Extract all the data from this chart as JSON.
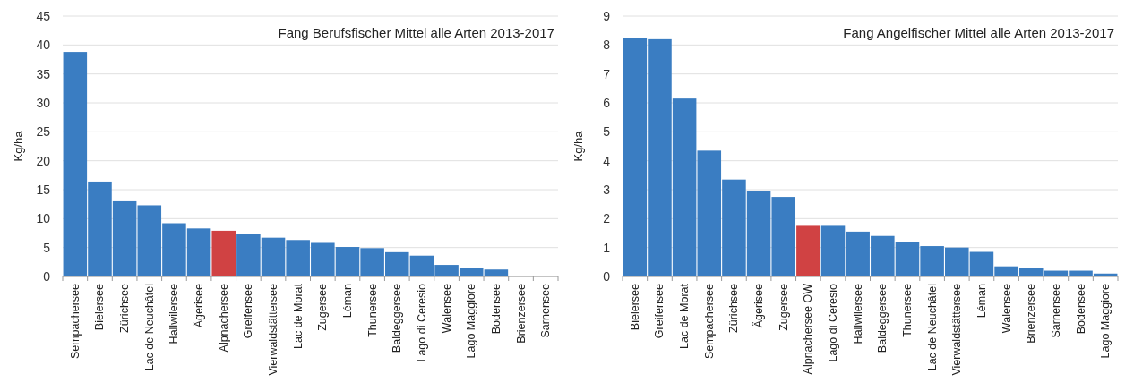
{
  "chart_data": [
    {
      "type": "bar",
      "title": "Fang Berufsfischer Mittel alle Arten 2013-2017",
      "ylabel": "Kg/ha",
      "categories": [
        "Sempachersee",
        "Bielersee",
        "Zürichsee",
        "Lac de Neuchâtel",
        "Hallwilersee",
        "Ägerisee",
        "Alpnachersee",
        "Greifensee",
        "Vierwaldstättersee",
        "Lac de Morat",
        "Zugersee",
        "Léman",
        "Thunersee",
        "Baldeggersee",
        "Lago di Ceresio",
        "Walensee",
        "Lago Maggiore",
        "Bodensee",
        "Brienzersee",
        "Sarnensee"
      ],
      "values": [
        38.8,
        16.4,
        13.0,
        12.3,
        9.2,
        8.3,
        7.9,
        7.4,
        6.7,
        6.3,
        5.8,
        5.1,
        4.9,
        4.2,
        3.6,
        2.0,
        1.4,
        1.2,
        0,
        0
      ],
      "colors": [
        "#3a7dc2",
        "#3a7dc2",
        "#3a7dc2",
        "#3a7dc2",
        "#3a7dc2",
        "#3a7dc2",
        "#d04243",
        "#3a7dc2",
        "#3a7dc2",
        "#3a7dc2",
        "#3a7dc2",
        "#3a7dc2",
        "#3a7dc2",
        "#3a7dc2",
        "#3a7dc2",
        "#3a7dc2",
        "#3a7dc2",
        "#3a7dc2",
        "#3a7dc2",
        "#3a7dc2"
      ],
      "ylim": [
        0,
        45
      ],
      "yticks": [
        0,
        5,
        10,
        15,
        20,
        25,
        30,
        35,
        40,
        45
      ],
      "grid": "y"
    },
    {
      "type": "bar",
      "title": "Fang Angelfischer Mittel alle Arten 2013-2017",
      "ylabel": "Kg/ha",
      "categories": [
        "Bielersee",
        "Greifensee",
        "Lac de Morat",
        "Sempachersee",
        "Zürichsee",
        "Ägerisee",
        "Zugersee",
        "Alpnachersee OW",
        "Lago di Ceresio",
        "Hallwilersee",
        "Baldeggersee",
        "Thunersee",
        "Lac de Neuchâtel",
        "Vierwaldstättersee",
        "Léman",
        "Walensee",
        "Brienzersee",
        "Sarnensee",
        "Bodensee",
        "Lago Maggiore"
      ],
      "values": [
        8.25,
        8.2,
        6.15,
        4.35,
        3.35,
        2.95,
        2.75,
        1.75,
        1.75,
        1.55,
        1.4,
        1.2,
        1.05,
        1.0,
        0.85,
        0.35,
        0.28,
        0.2,
        0.2,
        0.1
      ],
      "colors": [
        "#3a7dc2",
        "#3a7dc2",
        "#3a7dc2",
        "#3a7dc2",
        "#3a7dc2",
        "#3a7dc2",
        "#3a7dc2",
        "#d04243",
        "#3a7dc2",
        "#3a7dc2",
        "#3a7dc2",
        "#3a7dc2",
        "#3a7dc2",
        "#3a7dc2",
        "#3a7dc2",
        "#3a7dc2",
        "#3a7dc2",
        "#3a7dc2",
        "#3a7dc2",
        "#3a7dc2"
      ],
      "ylim": [
        0,
        9
      ],
      "yticks": [
        0,
        1,
        2,
        3,
        4,
        5,
        6,
        7,
        8,
        9
      ],
      "grid": "y"
    }
  ]
}
